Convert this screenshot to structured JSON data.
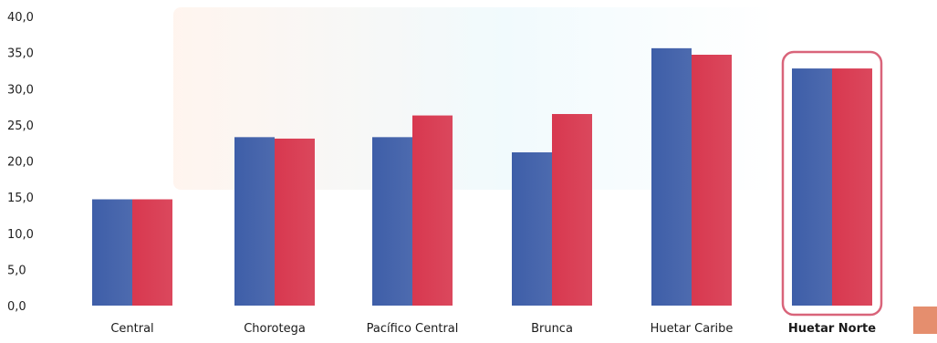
{
  "chart_data": {
    "type": "bar",
    "title": "",
    "xlabel": "",
    "ylabel": "",
    "ylim": [
      0,
      40
    ],
    "y_ticks": [
      "0,0",
      "5,0",
      "10,0",
      "15,0",
      "20,0",
      "25,0",
      "30,0",
      "35,0",
      "40,0"
    ],
    "categories": [
      "Central",
      "Chorotega",
      "Pacífico Central",
      "Brunca",
      "Huetar Caribe",
      "Huetar Norte"
    ],
    "series": [
      {
        "color": "#3e5ea8",
        "values": [
          14.7,
          23.3,
          23.3,
          21.2,
          35.6,
          32.8
        ]
      },
      {
        "color": "#d8384f",
        "values": [
          14.7,
          23.1,
          26.3,
          26.5,
          34.7,
          32.8
        ]
      }
    ],
    "highlight_category": "Huetar Norte",
    "highlight_color": "#d9647a",
    "grid": false,
    "legend": "none"
  }
}
